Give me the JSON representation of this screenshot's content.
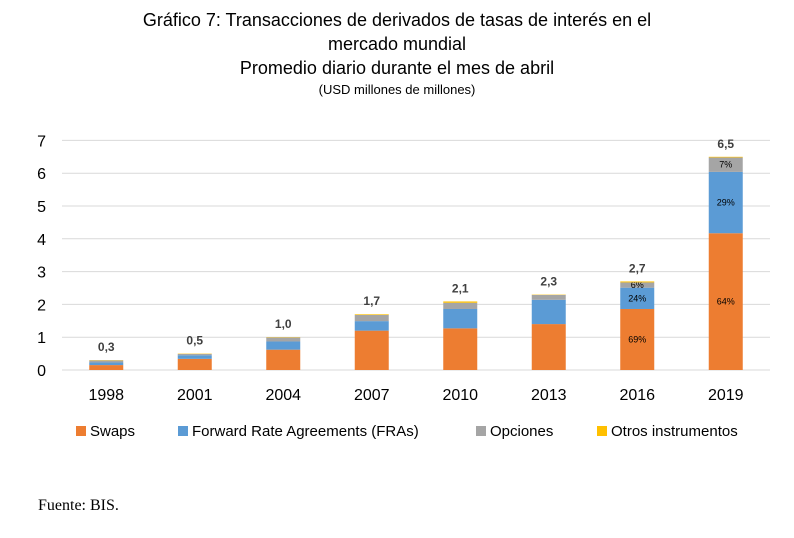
{
  "chart_data": {
    "type": "bar",
    "stacked": true,
    "title_line1": "Gráfico 7: Transacciones de derivados de tasas de interés en el",
    "title_line2": "mercado mundial",
    "subtitle": "Promedio diario durante el mes de abril",
    "unit_note": "(USD millones de millones)",
    "categories": [
      "1998",
      "2001",
      "2004",
      "2007",
      "2010",
      "2013",
      "2016",
      "2019"
    ],
    "series": [
      {
        "name": "Swaps",
        "color": "#ED7D31",
        "values": [
          0.15,
          0.34,
          0.62,
          1.2,
          1.27,
          1.4,
          1.86,
          4.17
        ]
      },
      {
        "name": "Forward Rate Agreements (FRAs)",
        "color": "#5B9BD5",
        "values": [
          0.08,
          0.11,
          0.25,
          0.29,
          0.59,
          0.74,
          0.65,
          1.87
        ]
      },
      {
        "name": "Opciones",
        "color": "#A5A5A5",
        "values": [
          0.06,
          0.04,
          0.12,
          0.19,
          0.19,
          0.15,
          0.16,
          0.44
        ]
      },
      {
        "name": "Otros instrumentos",
        "color": "#FFC000",
        "values": [
          0.01,
          0.01,
          0.01,
          0.02,
          0.04,
          0.01,
          0.03,
          0.02
        ]
      }
    ],
    "totals": [
      "0,3",
      "0,5",
      "1,0",
      "1,7",
      "2,1",
      "2,3",
      "2,7",
      "6,5"
    ],
    "segment_labels": [
      {
        "category": "2016",
        "series": "Swaps",
        "text": "69%"
      },
      {
        "category": "2016",
        "series": "Forward Rate Agreements (FRAs)",
        "text": "24%"
      },
      {
        "category": "2016",
        "series": "Opciones",
        "text": "6%"
      },
      {
        "category": "2019",
        "series": "Swaps",
        "text": "64%"
      },
      {
        "category": "2019",
        "series": "Forward Rate Agreements (FRAs)",
        "text": "29%"
      },
      {
        "category": "2019",
        "series": "Opciones",
        "text": "7%"
      }
    ],
    "ylim": [
      0,
      7
    ],
    "yticks": [
      0,
      1,
      2,
      3,
      4,
      5,
      6,
      7
    ],
    "grid": true,
    "legend_position": "bottom"
  },
  "source": "Fuente: BIS."
}
